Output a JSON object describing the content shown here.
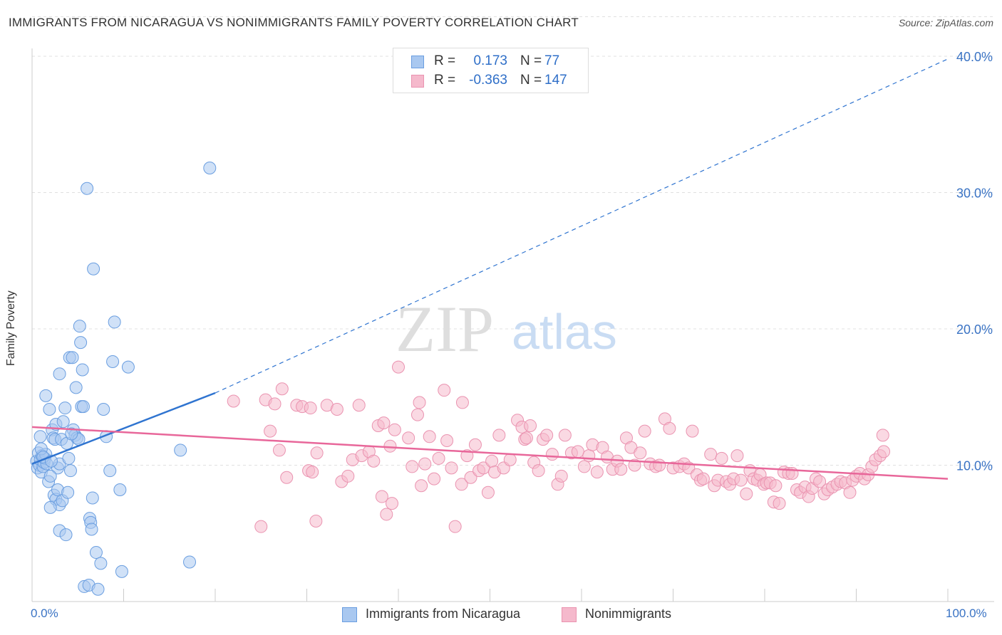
{
  "title": "IMMIGRANTS FROM NICARAGUA VS NONIMMIGRANTS FAMILY POVERTY CORRELATION CHART",
  "source": "Source: ZipAtlas.com",
  "watermark": {
    "zip": "ZIP",
    "atlas": "atlas"
  },
  "colors": {
    "blue_fill": "#a9c8f0",
    "blue_stroke": "#6a9ee0",
    "blue_line": "#2f74d0",
    "pink_fill": "#f5b9cc",
    "pink_stroke": "#ea93b0",
    "pink_line": "#e8679a",
    "axis_text": "#3a73c4",
    "grid": "#e0e0e0"
  },
  "legend_top": {
    "rows": [
      {
        "r_label": "R =",
        "r_value": "0.173",
        "n_label": "N =",
        "n_value": "77",
        "color": "blue"
      },
      {
        "r_label": "R =",
        "r_value": "-0.363",
        "n_label": "N =",
        "n_value": "147",
        "color": "pink"
      }
    ]
  },
  "legend_bottom": [
    {
      "label": "Immigrants from Nicaragua",
      "color": "blue"
    },
    {
      "label": "Nonimmigrants",
      "color": "pink"
    }
  ],
  "chart_data": {
    "type": "scatter",
    "title": "IMMIGRANTS FROM NICARAGUA VS NONIMMIGRANTS FAMILY POVERTY CORRELATION CHART",
    "xlabel": "",
    "ylabel": "Family Poverty",
    "xlim": [
      0,
      100
    ],
    "ylim": [
      0,
      43
    ],
    "x_tick_labels": [
      "0.0%",
      "100.0%"
    ],
    "y_ticks": [
      10,
      20,
      30,
      40
    ],
    "y_tick_labels": [
      "10.0%",
      "20.0%",
      "30.0%",
      "40.0%"
    ],
    "grid": true,
    "series": [
      {
        "name": "Immigrants from Nicaragua",
        "r": 0.173,
        "n": 77,
        "trend": {
          "x0": 0,
          "y0": 10.1,
          "x1": 20,
          "y1": 15.3,
          "dashed_to_x": 100,
          "dashed_to_y": 39.8
        },
        "points": [
          [
            0.5,
            10.3
          ],
          [
            0.6,
            9.8
          ],
          [
            0.7,
            10.9
          ],
          [
            0.8,
            10.0
          ],
          [
            0.9,
            10.4
          ],
          [
            1.0,
            9.5
          ],
          [
            1.1,
            10.7
          ],
          [
            1.2,
            9.9
          ],
          [
            1.3,
            10.2
          ],
          [
            1.4,
            10.5
          ],
          [
            1.5,
            10.8
          ],
          [
            1.6,
            10.1
          ],
          [
            1.0,
            11.2
          ],
          [
            0.9,
            12.1
          ],
          [
            1.5,
            15.1
          ],
          [
            1.9,
            14.1
          ],
          [
            2.2,
            12.6
          ],
          [
            2.3,
            12.0
          ],
          [
            2.5,
            11.9
          ],
          [
            2.6,
            13.0
          ],
          [
            2.8,
            9.8
          ],
          [
            3.0,
            10.1
          ],
          [
            3.2,
            11.9
          ],
          [
            3.4,
            13.2
          ],
          [
            3.6,
            14.2
          ],
          [
            3.8,
            11.6
          ],
          [
            4.0,
            10.5
          ],
          [
            4.2,
            9.6
          ],
          [
            2.4,
            7.8
          ],
          [
            2.6,
            7.5
          ],
          [
            2.8,
            8.2
          ],
          [
            3.0,
            7.1
          ],
          [
            3.3,
            7.4
          ],
          [
            2.0,
            6.9
          ],
          [
            3.0,
            5.2
          ],
          [
            3.7,
            4.9
          ],
          [
            1.8,
            8.8
          ],
          [
            2.0,
            9.2
          ],
          [
            4.1,
            17.9
          ],
          [
            4.4,
            17.9
          ],
          [
            3.0,
            16.7
          ],
          [
            4.8,
            15.7
          ],
          [
            4.5,
            12.6
          ],
          [
            4.7,
            12.2
          ],
          [
            4.9,
            12.0
          ],
          [
            5.1,
            11.9
          ],
          [
            4.3,
            12.3
          ],
          [
            5.3,
            19.0
          ],
          [
            5.2,
            20.2
          ],
          [
            5.5,
            17.0
          ],
          [
            5.4,
            14.3
          ],
          [
            5.6,
            14.3
          ],
          [
            6.3,
            6.1
          ],
          [
            6.4,
            5.8
          ],
          [
            6.5,
            5.3
          ],
          [
            6.6,
            7.6
          ],
          [
            6.7,
            24.4
          ],
          [
            6.0,
            30.3
          ],
          [
            7.0,
            3.6
          ],
          [
            7.5,
            2.8
          ],
          [
            5.7,
            1.1
          ],
          [
            6.2,
            1.2
          ],
          [
            7.2,
            0.9
          ],
          [
            7.8,
            14.1
          ],
          [
            8.1,
            12.1
          ],
          [
            8.5,
            9.6
          ],
          [
            8.8,
            17.6
          ],
          [
            9.0,
            20.5
          ],
          [
            9.6,
            8.2
          ],
          [
            9.8,
            2.2
          ],
          [
            10.5,
            17.2
          ],
          [
            16.2,
            11.1
          ],
          [
            17.2,
            2.9
          ],
          [
            19.4,
            31.8
          ],
          [
            1.2,
            10.6
          ],
          [
            2.1,
            10.3
          ],
          [
            3.9,
            8.0
          ]
        ]
      },
      {
        "name": "Nonimmigrants",
        "r": -0.363,
        "n": 147,
        "trend": {
          "x0": 0,
          "y0": 12.8,
          "x1": 100,
          "y1": 9.0
        },
        "points": [
          [
            22,
            14.7
          ],
          [
            25,
            5.5
          ],
          [
            25.5,
            14.8
          ],
          [
            26,
            12.5
          ],
          [
            26.5,
            14.5
          ],
          [
            27,
            11.1
          ],
          [
            27.3,
            15.6
          ],
          [
            27.8,
            9.1
          ],
          [
            28.9,
            14.4
          ],
          [
            29.5,
            14.3
          ],
          [
            30.4,
            14.2
          ],
          [
            30.2,
            9.6
          ],
          [
            30.6,
            9.5
          ],
          [
            31,
            5.9
          ],
          [
            31.1,
            10.9
          ],
          [
            32.2,
            14.4
          ],
          [
            33.3,
            14.1
          ],
          [
            33.8,
            8.8
          ],
          [
            34.5,
            9.2
          ],
          [
            35,
            10.4
          ],
          [
            35.7,
            14.4
          ],
          [
            36,
            10.7
          ],
          [
            36.8,
            11.0
          ],
          [
            37.3,
            10.3
          ],
          [
            37.8,
            12.9
          ],
          [
            38.2,
            7.7
          ],
          [
            38.4,
            13.1
          ],
          [
            39.1,
            11.4
          ],
          [
            39.3,
            7.2
          ],
          [
            39.6,
            12.6
          ],
          [
            38.7,
            6.4
          ],
          [
            40,
            17.2
          ],
          [
            41.1,
            12.0
          ],
          [
            41.5,
            9.9
          ],
          [
            42.1,
            13.7
          ],
          [
            42.3,
            14.6
          ],
          [
            42.5,
            8.5
          ],
          [
            42.9,
            10.1
          ],
          [
            43.4,
            12.1
          ],
          [
            43.9,
            9.0
          ],
          [
            44.4,
            10.5
          ],
          [
            45,
            15.5
          ],
          [
            45.3,
            11.8
          ],
          [
            45.8,
            9.8
          ],
          [
            46.2,
            5.5
          ],
          [
            46.9,
            8.6
          ],
          [
            47,
            14.6
          ],
          [
            47.5,
            10.7
          ],
          [
            47.9,
            9.1
          ],
          [
            48.4,
            11.5
          ],
          [
            48.8,
            9.6
          ],
          [
            49.3,
            9.8
          ],
          [
            49.8,
            8.0
          ],
          [
            50.2,
            10.3
          ],
          [
            50.5,
            9.5
          ],
          [
            51.0,
            12.2
          ],
          [
            51.5,
            9.8
          ],
          [
            52.2,
            10.4
          ],
          [
            53.0,
            13.3
          ],
          [
            53.5,
            12.8
          ],
          [
            53.8,
            11.9
          ],
          [
            54.0,
            12.0
          ],
          [
            54.4,
            12.9
          ],
          [
            54.8,
            10.2
          ],
          [
            55.3,
            9.6
          ],
          [
            55.8,
            11.9
          ],
          [
            56.2,
            12.2
          ],
          [
            56.8,
            10.8
          ],
          [
            57.4,
            8.6
          ],
          [
            57.8,
            9.2
          ],
          [
            58.2,
            12.2
          ],
          [
            58.9,
            10.9
          ],
          [
            59.6,
            11.0
          ],
          [
            60.3,
            9.9
          ],
          [
            60.8,
            10.7
          ],
          [
            61.2,
            11.5
          ],
          [
            61.7,
            9.5
          ],
          [
            62.3,
            11.3
          ],
          [
            62.8,
            10.6
          ],
          [
            63.4,
            9.7
          ],
          [
            63.9,
            10.3
          ],
          [
            64.3,
            9.7
          ],
          [
            64.9,
            12.0
          ],
          [
            65.4,
            11.3
          ],
          [
            65.8,
            10.0
          ],
          [
            66.4,
            10.9
          ],
          [
            66.9,
            12.5
          ],
          [
            67.5,
            10.1
          ],
          [
            68.1,
            9.9
          ],
          [
            68.5,
            10.0
          ],
          [
            69.1,
            13.4
          ],
          [
            69.6,
            12.7
          ],
          [
            70.0,
            9.8
          ],
          [
            70.7,
            9.9
          ],
          [
            71.2,
            10.1
          ],
          [
            71.7,
            9.8
          ],
          [
            72.1,
            12.5
          ],
          [
            72.6,
            9.3
          ],
          [
            73.0,
            8.9
          ],
          [
            73.3,
            9.0
          ],
          [
            74.1,
            10.8
          ],
          [
            74.5,
            8.5
          ],
          [
            74.9,
            8.9
          ],
          [
            75.3,
            10.5
          ],
          [
            75.8,
            8.8
          ],
          [
            76.2,
            8.6
          ],
          [
            76.6,
            9.0
          ],
          [
            77.0,
            10.7
          ],
          [
            77.4,
            8.9
          ],
          [
            78.0,
            7.9
          ],
          [
            78.4,
            9.6
          ],
          [
            78.8,
            9.0
          ],
          [
            79.2,
            8.9
          ],
          [
            79.5,
            9.3
          ],
          [
            79.9,
            8.6
          ],
          [
            80.2,
            8.7
          ],
          [
            80.6,
            8.7
          ],
          [
            81.0,
            7.3
          ],
          [
            81.2,
            8.5
          ],
          [
            81.6,
            7.2
          ],
          [
            82.1,
            9.5
          ],
          [
            82.6,
            9.4
          ],
          [
            83.0,
            9.4
          ],
          [
            83.5,
            8.2
          ],
          [
            83.9,
            8.0
          ],
          [
            84.4,
            8.4
          ],
          [
            84.8,
            7.7
          ],
          [
            85.2,
            8.3
          ],
          [
            85.6,
            9.0
          ],
          [
            86.0,
            8.8
          ],
          [
            86.5,
            7.9
          ],
          [
            86.9,
            8.2
          ],
          [
            87.4,
            8.4
          ],
          [
            87.9,
            8.6
          ],
          [
            88.3,
            8.8
          ],
          [
            88.8,
            8.7
          ],
          [
            89.3,
            8.0
          ],
          [
            89.6,
            8.9
          ],
          [
            90.0,
            9.2
          ],
          [
            90.4,
            9.4
          ],
          [
            90.9,
            9.0
          ],
          [
            91.3,
            9.3
          ],
          [
            91.7,
            9.9
          ],
          [
            92.1,
            10.4
          ],
          [
            92.6,
            10.7
          ],
          [
            93.0,
            11.0
          ],
          [
            92.9,
            12.2
          ]
        ]
      }
    ]
  }
}
